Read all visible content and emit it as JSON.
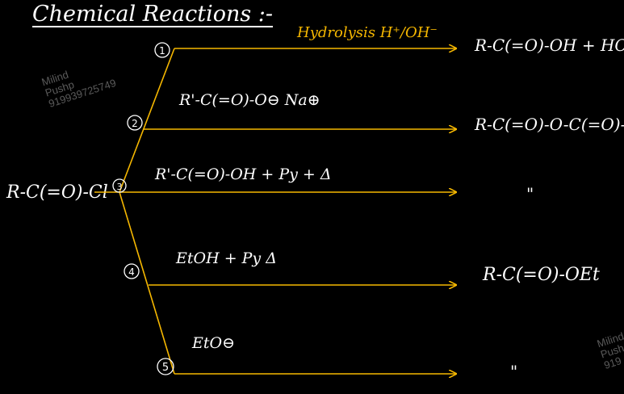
{
  "title": "Chemical Reactions :-",
  "reactant": "R-C(=O)-Cl",
  "routes": [
    {
      "num": "1",
      "reagent": "Hydrolysis  H⁺/OH⁻",
      "product": "R-C(=O)-OH + HCl"
    },
    {
      "num": "2",
      "reagent": "R'-C(=O)-O⊖ Na⊕",
      "product": "R-C(=O)-O-C(=O)-R'"
    },
    {
      "num": "3",
      "reagent": "R'-C(=O)-OH + Py + Δ",
      "product": "\""
    },
    {
      "num": "4",
      "reagent": "EtOH + Py  Δ",
      "product": "R-C(=O)-OEt"
    },
    {
      "num": "5",
      "reagent": "EtO⊖",
      "product": "\""
    }
  ],
  "watermark": {
    "line1": "Milind",
    "line2": "Pushp",
    "line3": "919939725749"
  },
  "watermark_partial": {
    "line1": "Milind",
    "line2": "Push",
    "line3": "919"
  },
  "colors": {
    "background": "#000000",
    "arrows": "#f5b700",
    "text": "#ffffff"
  }
}
